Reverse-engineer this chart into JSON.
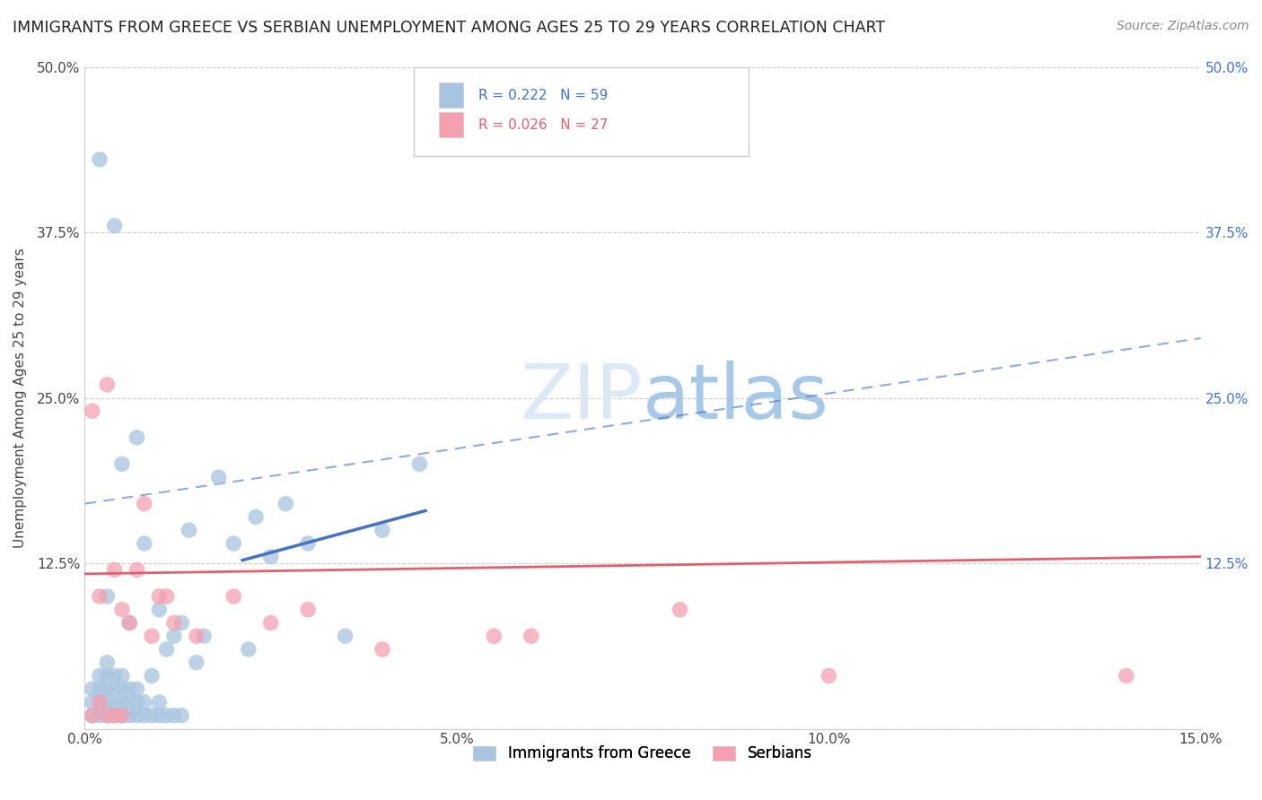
{
  "title": "IMMIGRANTS FROM GREECE VS SERBIAN UNEMPLOYMENT AMONG AGES 25 TO 29 YEARS CORRELATION CHART",
  "source": "Source: ZipAtlas.com",
  "ylabel": "Unemployment Among Ages 25 to 29 years",
  "xlim": [
    0.0,
    0.15
  ],
  "ylim": [
    0.0,
    0.5
  ],
  "xticks": [
    0.0,
    0.05,
    0.1,
    0.15
  ],
  "xticklabels": [
    "0.0%",
    "5.0%",
    "10.0%",
    "15.0%"
  ],
  "yticks": [
    0.0,
    0.125,
    0.25,
    0.375,
    0.5
  ],
  "ylabels_left": [
    "",
    "12.5%",
    "25.0%",
    "37.5%",
    "50.0%"
  ],
  "ylabels_right": [
    "",
    "12.5%",
    "25.0%",
    "37.5%",
    "50.0%"
  ],
  "legend_labels": [
    "Immigrants from Greece",
    "Serbians"
  ],
  "R_greece": 0.222,
  "N_greece": 59,
  "R_serbian": 0.026,
  "N_serbian": 27,
  "greece_color": "#a8c4e0",
  "serbian_color": "#f4a0b0",
  "greece_line_color": "#4472C4",
  "serbian_line_color": "#E06070",
  "right_axis_color": "#4472C4",
  "watermark_color": "#d8e4f0",
  "greece_scatter_x": [
    0.001,
    0.001,
    0.001,
    0.002,
    0.002,
    0.002,
    0.002,
    0.002,
    0.003,
    0.003,
    0.003,
    0.003,
    0.003,
    0.003,
    0.004,
    0.004,
    0.004,
    0.004,
    0.004,
    0.005,
    0.005,
    0.005,
    0.005,
    0.005,
    0.006,
    0.006,
    0.006,
    0.006,
    0.007,
    0.007,
    0.007,
    0.007,
    0.008,
    0.008,
    0.008,
    0.009,
    0.009,
    0.01,
    0.01,
    0.01,
    0.011,
    0.011,
    0.012,
    0.012,
    0.013,
    0.013,
    0.014,
    0.015,
    0.016,
    0.018,
    0.02,
    0.022,
    0.023,
    0.025,
    0.027,
    0.03,
    0.035,
    0.04,
    0.045
  ],
  "greece_scatter_y": [
    0.01,
    0.02,
    0.03,
    0.01,
    0.02,
    0.03,
    0.04,
    0.43,
    0.01,
    0.02,
    0.03,
    0.04,
    0.05,
    0.1,
    0.01,
    0.02,
    0.03,
    0.04,
    0.38,
    0.01,
    0.02,
    0.03,
    0.04,
    0.2,
    0.01,
    0.02,
    0.03,
    0.08,
    0.01,
    0.02,
    0.03,
    0.22,
    0.01,
    0.02,
    0.14,
    0.01,
    0.04,
    0.01,
    0.02,
    0.09,
    0.01,
    0.06,
    0.01,
    0.07,
    0.01,
    0.08,
    0.15,
    0.05,
    0.07,
    0.19,
    0.14,
    0.06,
    0.16,
    0.13,
    0.17,
    0.14,
    0.07,
    0.15,
    0.2
  ],
  "serbian_scatter_x": [
    0.001,
    0.001,
    0.002,
    0.002,
    0.003,
    0.003,
    0.004,
    0.004,
    0.005,
    0.005,
    0.006,
    0.007,
    0.008,
    0.009,
    0.01,
    0.011,
    0.012,
    0.015,
    0.02,
    0.025,
    0.03,
    0.04,
    0.055,
    0.06,
    0.08,
    0.1,
    0.14
  ],
  "serbian_scatter_y": [
    0.01,
    0.24,
    0.02,
    0.1,
    0.01,
    0.26,
    0.01,
    0.12,
    0.01,
    0.09,
    0.08,
    0.12,
    0.17,
    0.07,
    0.1,
    0.1,
    0.08,
    0.07,
    0.1,
    0.08,
    0.09,
    0.06,
    0.07,
    0.07,
    0.09,
    0.04,
    0.04
  ],
  "blue_line_x": [
    0.021,
    0.046
  ],
  "blue_line_y": [
    0.127,
    0.165
  ],
  "dashed_line_x": [
    0.0,
    0.15
  ],
  "dashed_line_y": [
    0.17,
    0.295
  ],
  "pink_line_x": [
    0.0,
    0.15
  ],
  "pink_line_y": [
    0.117,
    0.13
  ]
}
